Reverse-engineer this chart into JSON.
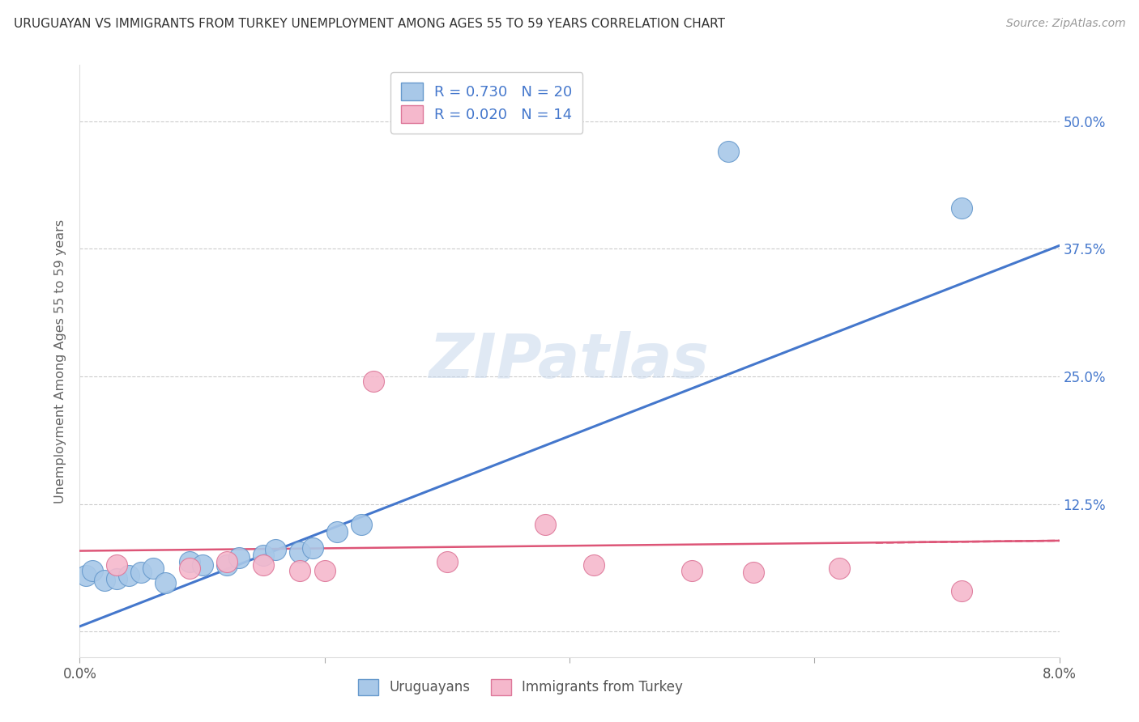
{
  "title": "URUGUAYAN VS IMMIGRANTS FROM TURKEY UNEMPLOYMENT AMONG AGES 55 TO 59 YEARS CORRELATION CHART",
  "source": "Source: ZipAtlas.com",
  "ylabel": "Unemployment Among Ages 55 to 59 years",
  "watermark": "ZIPatlas",
  "blue_R": "0.730",
  "blue_N": "20",
  "pink_R": "0.020",
  "pink_N": "14",
  "xmin": 0.0,
  "xmax": 0.08,
  "ymin": -0.025,
  "ymax": 0.555,
  "yticks": [
    0.0,
    0.125,
    0.25,
    0.375,
    0.5
  ],
  "ytick_labels_right": [
    "",
    "12.5%",
    "25.0%",
    "37.5%",
    "50.0%"
  ],
  "xticks": [
    0.0,
    0.02,
    0.04,
    0.06,
    0.08
  ],
  "xtick_labels": [
    "0.0%",
    "",
    "",
    "",
    "8.0%"
  ],
  "blue_scatter_x": [
    0.0005,
    0.001,
    0.002,
    0.003,
    0.004,
    0.005,
    0.006,
    0.007,
    0.009,
    0.01,
    0.012,
    0.013,
    0.015,
    0.016,
    0.018,
    0.019,
    0.021,
    0.023,
    0.053,
    0.072
  ],
  "blue_scatter_y": [
    0.055,
    0.06,
    0.05,
    0.052,
    0.055,
    0.058,
    0.062,
    0.048,
    0.068,
    0.065,
    0.065,
    0.072,
    0.075,
    0.08,
    0.078,
    0.082,
    0.098,
    0.105,
    0.47,
    0.415
  ],
  "pink_scatter_x": [
    0.003,
    0.009,
    0.012,
    0.015,
    0.018,
    0.02,
    0.024,
    0.03,
    0.038,
    0.042,
    0.05,
    0.055,
    0.062,
    0.072
  ],
  "pink_scatter_y": [
    0.065,
    0.062,
    0.068,
    0.065,
    0.06,
    0.06,
    0.245,
    0.068,
    0.105,
    0.065,
    0.06,
    0.058,
    0.062,
    0.04
  ],
  "blue_line_x": [
    0.0,
    0.08
  ],
  "blue_line_y": [
    0.005,
    0.378
  ],
  "pink_line_x": [
    0.0,
    0.08
  ],
  "pink_line_y": [
    0.079,
    0.089
  ],
  "blue_color": "#A8C8E8",
  "blue_edge_color": "#6699CC",
  "pink_color": "#F5B8CC",
  "pink_edge_color": "#DD7799",
  "blue_line_color": "#4477CC",
  "pink_line_color": "#DD5577",
  "legend_label_blue": "Uruguayans",
  "legend_label_pink": "Immigrants from Turkey",
  "background_color": "#FFFFFF",
  "grid_color": "#CCCCCC",
  "title_color": "#333333",
  "axis_label_color": "#666666",
  "right_tick_color": "#4477CC"
}
